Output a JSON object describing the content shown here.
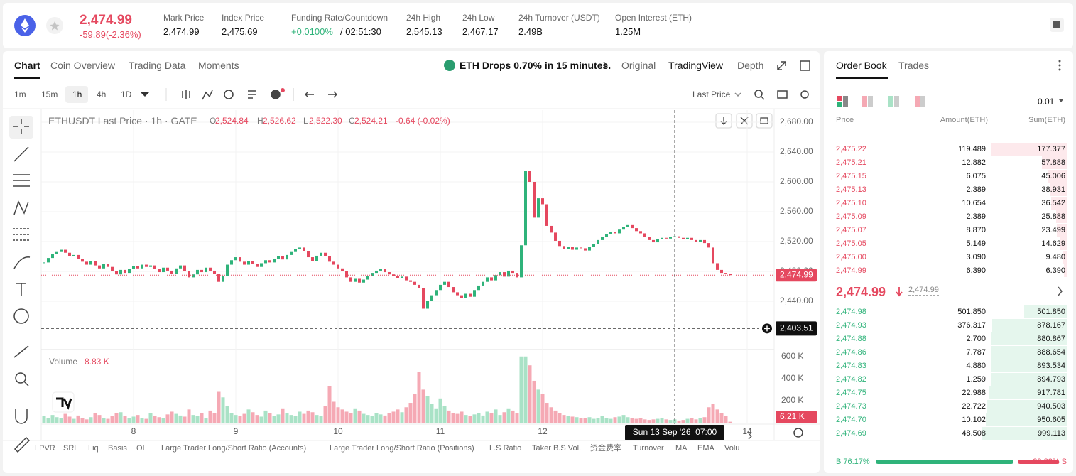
{
  "header": {
    "price": "2,474.99",
    "change": "-59.89(-2.36%)",
    "stats": [
      {
        "label": "Mark Price",
        "value": "2,474.99"
      },
      {
        "label": "Index Price",
        "value": "2,475.69"
      },
      {
        "label": "Funding Rate/Countdown",
        "value": "+0.0100%",
        "extra": "/ 02:51:30"
      },
      {
        "label": "24h High",
        "value": "2,545.13"
      },
      {
        "label": "24h Low",
        "value": "2,467.17"
      },
      {
        "label": "24h Turnover (USDT)",
        "value": "2.49B"
      },
      {
        "label": "Open Interest (ETH)",
        "value": "1.25M"
      }
    ]
  },
  "tabs": [
    "Chart",
    "Coin Overview",
    "Trading Data",
    "Moments"
  ],
  "alert": "ETH Drops 0.70% in 15 minutes.",
  "views": [
    "Original",
    "TradingView",
    "Depth"
  ],
  "intervals": [
    "1m",
    "15m",
    "1h",
    "4h",
    "1D"
  ],
  "price_source": "Last Price",
  "indicators": [
    "LPVR",
    "SRL",
    "Liq",
    "Basis",
    "OI",
    "Large Trader Long/Short Ratio (Accounts)",
    "Large Trader Long/Short Ratio (Positions)",
    "L.S Ratio",
    "Taker B.S Vol.",
    "资金费率",
    "Turnover",
    "MA",
    "EMA",
    "Volu"
  ],
  "chart_data": {
    "type": "candlestick",
    "title": "ETHUSDT Last Price · 1h · GATE",
    "ohlc": [
      {
        "key": "O",
        "value": "2,524.84"
      },
      {
        "key": "H",
        "value": "2,526.62"
      },
      {
        "key": "L",
        "value": "2,522.30"
      },
      {
        "key": "C",
        "value": "2,524.21"
      }
    ],
    "change": "-0.64 (-0.02%)",
    "closes": [
      2492,
      2498,
      2503,
      2506,
      2509,
      2505,
      2500,
      2502,
      2497,
      2493,
      2489,
      2494,
      2488,
      2484,
      2490,
      2486,
      2480,
      2476,
      2482,
      2478,
      2483,
      2487,
      2484,
      2489,
      2486,
      2488,
      2483,
      2479,
      2485,
      2481,
      2477,
      2484,
      2488,
      2480,
      2472,
      2476,
      2482,
      2479,
      2485,
      2481,
      2477,
      2466,
      2474,
      2489,
      2495,
      2499,
      2493,
      2489,
      2494,
      2490,
      2486,
      2491,
      2495,
      2492,
      2497,
      2500,
      2496,
      2502,
      2506,
      2510,
      2512,
      2507,
      2499,
      2494,
      2501,
      2505,
      2500,
      2493,
      2489,
      2484,
      2480,
      2472,
      2466,
      2470,
      2465,
      2469,
      2474,
      2478,
      2481,
      2483,
      2479,
      2476,
      2474,
      2471,
      2473,
      2468,
      2466,
      2462,
      2458,
      2430,
      2440,
      2448,
      2455,
      2462,
      2466,
      2459,
      2452,
      2448,
      2444,
      2450,
      2446,
      2455,
      2461,
      2466,
      2472,
      2468,
      2475,
      2479,
      2473,
      2481,
      2478,
      2472,
      2515,
      2615,
      2600,
      2552,
      2578,
      2570,
      2541,
      2532,
      2521,
      2514,
      2510,
      2513,
      2509,
      2512,
      2511,
      2508,
      2513,
      2517,
      2522,
      2526,
      2530,
      2533,
      2531,
      2536,
      2540,
      2543,
      2538,
      2534,
      2531,
      2526,
      2522,
      2519,
      2523,
      2525,
      2524,
      2526,
      2527,
      2525,
      2523,
      2525,
      2522,
      2520,
      2522,
      2518,
      2512,
      2491,
      2482,
      2478,
      2477,
      2474.99
    ],
    "volume_title": "Volume",
    "volume_value": "8.83 K",
    "volumes": [
      60,
      40,
      70,
      50,
      45,
      80,
      55,
      35,
      65,
      40,
      30,
      50,
      90,
      70,
      45,
      35,
      60,
      85,
      95,
      60,
      40,
      55,
      70,
      45,
      35,
      90,
      60,
      50,
      40,
      75,
      100,
      80,
      65,
      55,
      120,
      70,
      60,
      85,
      45,
      110,
      90,
      280,
      230,
      150,
      90,
      70,
      60,
      80,
      120,
      95,
      70,
      55,
      110,
      85,
      60,
      75,
      130,
      90,
      70,
      60,
      100,
      80,
      110,
      95,
      70,
      60,
      150,
      330,
      190,
      140,
      120,
      100,
      90,
      130,
      110,
      80,
      70,
      60,
      90,
      75,
      65,
      85,
      100,
      120,
      95,
      140,
      180,
      260,
      460,
      300,
      240,
      170,
      130,
      220,
      150,
      110,
      90,
      80,
      100,
      70,
      60,
      75,
      90,
      65,
      100,
      85,
      120,
      70,
      95,
      130,
      110,
      90,
      600,
      600,
      520,
      380,
      300,
      260,
      180,
      140,
      110,
      90,
      70,
      60,
      55,
      50,
      45,
      40,
      50,
      35,
      45,
      60,
      40,
      35,
      50,
      55,
      70,
      50,
      40,
      35,
      45,
      30,
      25,
      30,
      35,
      40,
      30,
      25,
      30,
      20,
      25,
      35,
      40,
      30,
      45,
      50,
      140,
      170,
      120,
      90,
      60,
      8.83
    ],
    "ylim": [
      2380,
      2700
    ],
    "yticks": [
      {
        "value": 2680,
        "label": "2,680.00"
      },
      {
        "value": 2640,
        "label": "2,640.00"
      },
      {
        "value": 2600,
        "label": "2,600.00"
      },
      {
        "value": 2560,
        "label": "2,560.00"
      },
      {
        "value": 2520,
        "label": "2,520.00"
      },
      {
        "value": 2480,
        "label": "2,480.00"
      },
      {
        "value": 2440,
        "label": "2,440.00"
      }
    ],
    "vlim": [
      0,
      650
    ],
    "vticks": [
      {
        "value": 600,
        "label": "600 K"
      },
      {
        "value": 400,
        "label": "400 K"
      },
      {
        "value": 200,
        "label": "200 K"
      }
    ],
    "xticks": [
      {
        "value": 21,
        "label": "8"
      },
      {
        "value": 45,
        "label": "9"
      },
      {
        "value": 69,
        "label": "10"
      },
      {
        "value": 93,
        "label": "11"
      },
      {
        "value": 117,
        "label": "12"
      },
      {
        "value": 165,
        "label": "14"
      }
    ],
    "last_price_label": "2,474.99",
    "volume_tag": "6.21 K",
    "crosshair": {
      "price": {
        "value": 2403.51,
        "label": "2,403.51"
      },
      "time": {
        "value": 148,
        "label": "Sun 13 Sep '26  07:00"
      }
    },
    "colors": {
      "up": "#2fb37a",
      "down": "#e5485f",
      "volume_up": "#a9e2c6",
      "volume_down": "#f5a9b4"
    },
    "grid": true
  },
  "orderbook": {
    "tabs": [
      "Order Book",
      "Trades"
    ],
    "precision": "0.01",
    "columns": [
      "Price",
      "Amount(ETH)",
      "Sum(ETH)"
    ],
    "asks": [
      [
        "2,475.22",
        "119.489",
        "177.377"
      ],
      [
        "2,475.21",
        "12.882",
        "57.888"
      ],
      [
        "2,475.15",
        "6.075",
        "45.006"
      ],
      [
        "2,475.13",
        "2.389",
        "38.931"
      ],
      [
        "2,475.10",
        "10.654",
        "36.542"
      ],
      [
        "2,475.09",
        "2.389",
        "25.888"
      ],
      [
        "2,475.07",
        "8.870",
        "23.499"
      ],
      [
        "2,475.05",
        "5.149",
        "14.629"
      ],
      [
        "2,475.00",
        "3.090",
        "9.480"
      ],
      [
        "2,474.99",
        "6.390",
        "6.390"
      ]
    ],
    "mid_price": "2,474.99",
    "mark_price": "2,474.99",
    "bids": [
      [
        "2,474.98",
        "501.850",
        "501.850"
      ],
      [
        "2,474.93",
        "376.317",
        "878.167"
      ],
      [
        "2,474.88",
        "2.700",
        "880.867"
      ],
      [
        "2,474.86",
        "7.787",
        "888.654"
      ],
      [
        "2,474.83",
        "4.880",
        "893.534"
      ],
      [
        "2,474.82",
        "1.259",
        "894.793"
      ],
      [
        "2,474.75",
        "22.988",
        "917.781"
      ],
      [
        "2,474.73",
        "22.722",
        "940.503"
      ],
      [
        "2,474.70",
        "10.102",
        "950.605"
      ],
      [
        "2,474.69",
        "48.508",
        "999.113"
      ]
    ],
    "buy": {
      "value": 76.17,
      "label": "B 76.17%"
    },
    "sell": {
      "value": 23.83,
      "label": "23.83% S"
    }
  }
}
